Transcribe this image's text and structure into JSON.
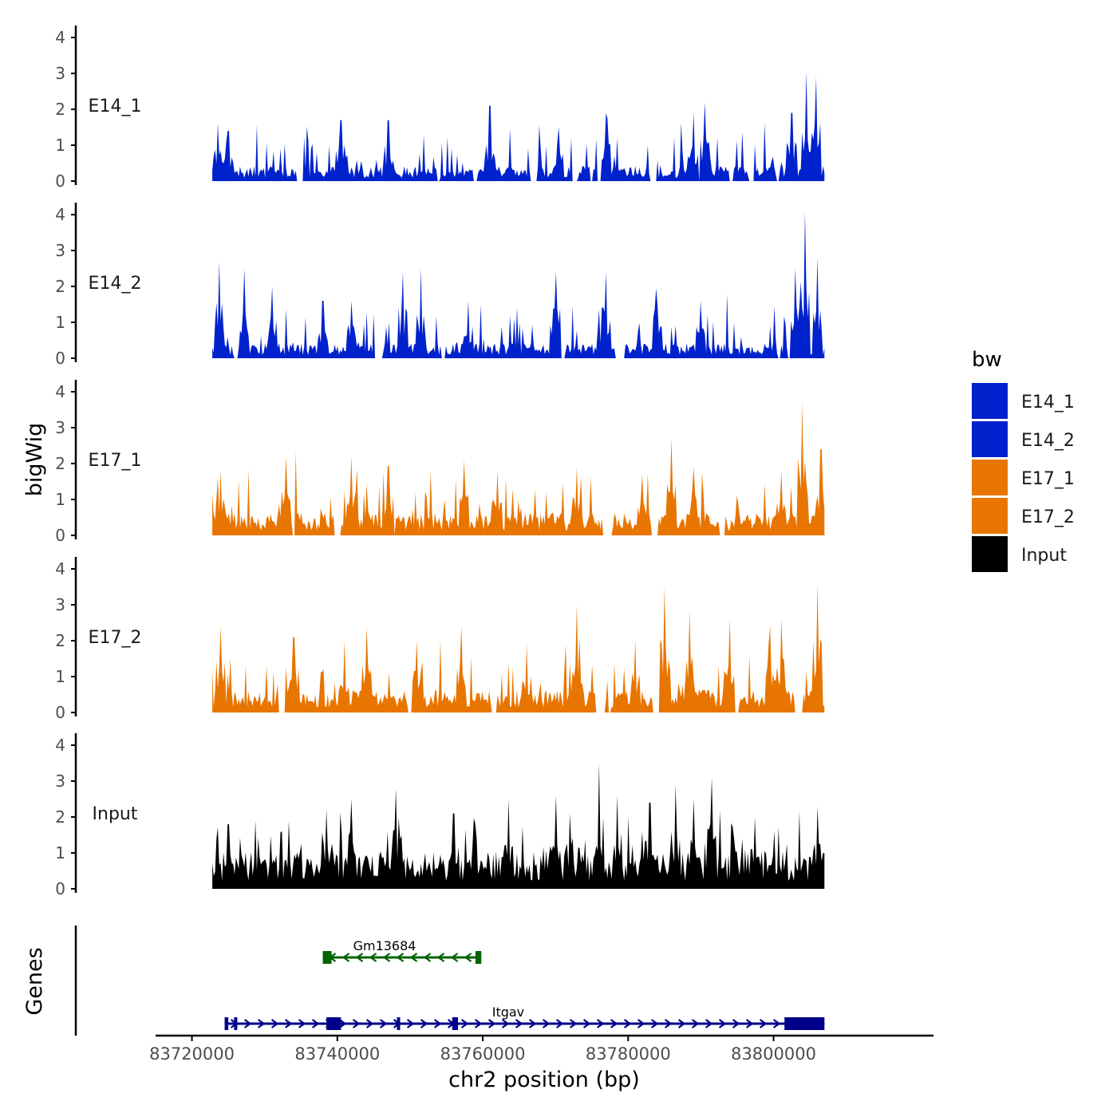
{
  "chart_data": {
    "type": "area",
    "title": "",
    "xlabel": "chr2 position (bp)",
    "ylabel": "bigWig",
    "genes_label": "Genes",
    "xlim": [
      83715000,
      83822000
    ],
    "ylim": [
      0,
      4.3
    ],
    "x_ticks": [
      83720000,
      83740000,
      83760000,
      83780000,
      83800000
    ],
    "x_tick_labels": [
      "83720000",
      "83740000",
      "83760000",
      "83780000",
      "83800000"
    ],
    "y_ticks": [
      0,
      1,
      2,
      3,
      4
    ],
    "y_tick_labels": [
      "0",
      "1",
      "2",
      "3",
      "4"
    ],
    "data_range": [
      83722800,
      83807000
    ],
    "legend": {
      "title": "bw",
      "position": "right",
      "entries": [
        {
          "name": "E14_1",
          "color": "#0022CC"
        },
        {
          "name": "E14_2",
          "color": "#0022CC"
        },
        {
          "name": "E17_1",
          "color": "#E87500"
        },
        {
          "name": "E17_2",
          "color": "#E87500"
        },
        {
          "name": "Input",
          "color": "#000000"
        }
      ]
    },
    "series": [
      {
        "name": "E14_1",
        "color": "#0022CC",
        "base": 0.3,
        "peak_max": 3.05,
        "zero_frac": 0.35,
        "seed": 11,
        "peaks": [
          [
            83723500,
            1.6
          ],
          [
            83725000,
            1.4
          ],
          [
            83740500,
            1.7
          ],
          [
            83747000,
            1.7
          ],
          [
            83761000,
            2.1
          ],
          [
            83770500,
            1.5
          ],
          [
            83777000,
            1.9
          ],
          [
            83789000,
            1.9
          ],
          [
            83790500,
            2.2
          ],
          [
            83802500,
            1.9
          ],
          [
            83804500,
            3.05
          ],
          [
            83805800,
            2.9
          ]
        ]
      },
      {
        "name": "E14_2",
        "color": "#0022CC",
        "base": 0.3,
        "peak_max": 4.1,
        "zero_frac": 0.33,
        "seed": 23,
        "peaks": [
          [
            83723800,
            2.7
          ],
          [
            83727200,
            2.5
          ],
          [
            83731000,
            2.0
          ],
          [
            83738000,
            1.6
          ],
          [
            83742000,
            1.6
          ],
          [
            83749000,
            2.4
          ],
          [
            83751500,
            2.5
          ],
          [
            83758000,
            1.6
          ],
          [
            83770000,
            2.4
          ],
          [
            83777000,
            2.4
          ],
          [
            83784000,
            1.5
          ],
          [
            83790000,
            1.6
          ],
          [
            83803000,
            2.5
          ],
          [
            83804300,
            4.1
          ],
          [
            83806000,
            2.8
          ]
        ]
      },
      {
        "name": "E17_1",
        "color": "#E87500",
        "base": 0.45,
        "peak_max": 3.7,
        "zero_frac": 0.1,
        "seed": 37,
        "peaks": [
          [
            83724000,
            1.8
          ],
          [
            83733000,
            2.2
          ],
          [
            83742000,
            2.2
          ],
          [
            83747000,
            1.9
          ],
          [
            83757500,
            2.1
          ],
          [
            83762000,
            1.8
          ],
          [
            83773000,
            1.9
          ],
          [
            83782000,
            1.7
          ],
          [
            83786000,
            2.7
          ],
          [
            83789000,
            1.9
          ],
          [
            83801000,
            1.8
          ],
          [
            83804000,
            3.7
          ],
          [
            83806500,
            2.4
          ]
        ]
      },
      {
        "name": "E17_2",
        "color": "#E87500",
        "base": 0.45,
        "peak_max": 3.6,
        "zero_frac": 0.1,
        "seed": 53,
        "peaks": [
          [
            83724000,
            2.4
          ],
          [
            83734000,
            2.1
          ],
          [
            83741000,
            2.0
          ],
          [
            83744000,
            2.4
          ],
          [
            83751000,
            2.0
          ],
          [
            83757000,
            2.4
          ],
          [
            83766000,
            1.9
          ],
          [
            83773000,
            3.0
          ],
          [
            83781000,
            2.0
          ],
          [
            83785000,
            3.5
          ],
          [
            83788500,
            2.8
          ],
          [
            83794000,
            2.6
          ],
          [
            83799500,
            2.4
          ],
          [
            83801000,
            2.6
          ],
          [
            83806000,
            3.6
          ]
        ]
      },
      {
        "name": "Input",
        "color": "#000000",
        "base": 0.75,
        "peak_max": 3.5,
        "zero_frac": 0.0,
        "seed": 71,
        "peaks": [
          [
            83725000,
            1.8
          ],
          [
            83738500,
            2.2
          ],
          [
            83742000,
            2.5
          ],
          [
            83748000,
            2.8
          ],
          [
            83756000,
            2.1
          ],
          [
            83763500,
            2.5
          ],
          [
            83770000,
            2.6
          ],
          [
            83772000,
            2.1
          ],
          [
            83776000,
            3.5
          ],
          [
            83778500,
            2.6
          ],
          [
            83783000,
            2.4
          ],
          [
            83786500,
            2.9
          ],
          [
            83789000,
            2.5
          ],
          [
            83791500,
            3.1
          ],
          [
            83797500,
            2.0
          ],
          [
            83806000,
            2.3
          ]
        ]
      }
    ],
    "genes": [
      {
        "name": "Gm13684",
        "strand": "-",
        "color": "#006400",
        "start": 83738000,
        "end": 83759800,
        "row": 0,
        "exons": [
          [
            83738000,
            83739200
          ],
          [
            83759000,
            83759800
          ]
        ]
      },
      {
        "name": "Itgav",
        "strand": "+",
        "color": "#00008B",
        "start": 83724500,
        "end": 83807000,
        "row": 1,
        "exons": [
          [
            83724500,
            83725000
          ],
          [
            83725800,
            83726000
          ],
          [
            83738500,
            83740500
          ],
          [
            83748200,
            83748600
          ],
          [
            83755800,
            83756600
          ],
          [
            83801500,
            83807000
          ]
        ]
      }
    ]
  }
}
